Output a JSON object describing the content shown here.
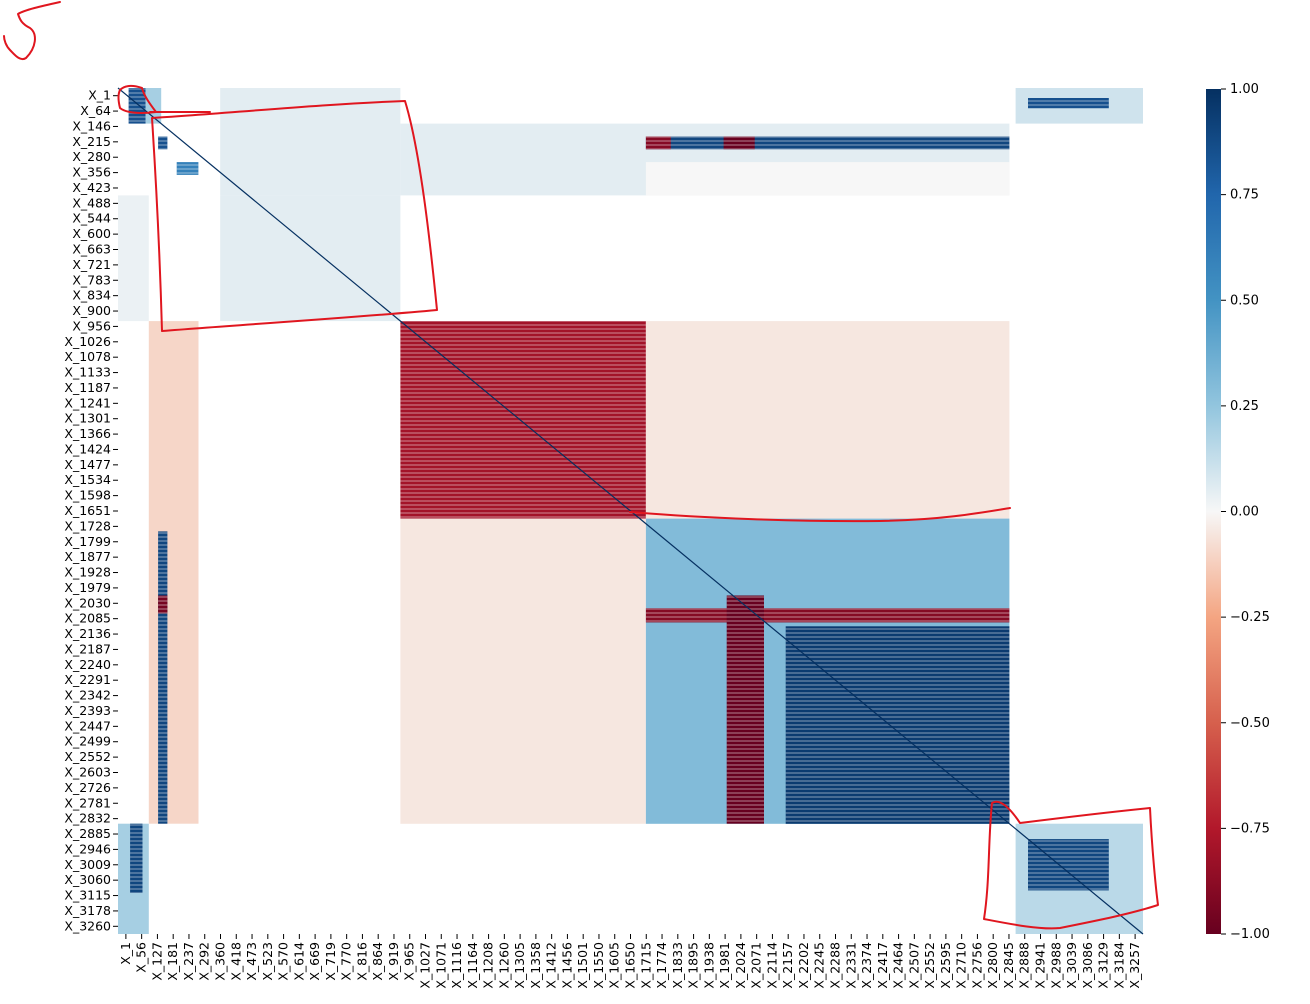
{
  "chart_data": {
    "type": "heatmap",
    "title": "",
    "xlabel": "",
    "ylabel": "",
    "colormap": "RdBu",
    "colorbar": {
      "range": [
        -1.0,
        1.0
      ],
      "ticks": [
        "1.00",
        "0.75",
        "0.50",
        "0.25",
        "0.00",
        "−0.25",
        "−0.50",
        "−0.75",
        "−1.00"
      ],
      "tick_values": [
        1.0,
        0.75,
        0.5,
        0.25,
        0.0,
        -0.25,
        -0.5,
        -0.75,
        -1.0
      ]
    },
    "colors": {
      "strong_positive": "#053061",
      "positive": "#2166ac",
      "weak_positive": "#92c5de",
      "neutral": "#f7f7f7",
      "weak_negative": "#f4a582",
      "negative": "#d6604d",
      "strong_negative": "#67001f",
      "annotation": "#e0161f"
    },
    "variable_index_range": [
      1,
      3300
    ],
    "y_tick_labels": [
      "X_1",
      "X_64",
      "X_146",
      "X_215",
      "X_280",
      "X_356",
      "X_423",
      "X_488",
      "X_544",
      "X_600",
      "X_663",
      "X_721",
      "X_783",
      "X_834",
      "X_900",
      "X_956",
      "X_1026",
      "X_1078",
      "X_1133",
      "X_1187",
      "X_1241",
      "X_1301",
      "X_1366",
      "X_1424",
      "X_1477",
      "X_1534",
      "X_1598",
      "X_1651",
      "X_1728",
      "X_1799",
      "X_1877",
      "X_1928",
      "X_1979",
      "X_2030",
      "X_2085",
      "X_2136",
      "X_2187",
      "X_2240",
      "X_2291",
      "X_2342",
      "X_2393",
      "X_2447",
      "X_2499",
      "X_2552",
      "X_2603",
      "X_2726",
      "X_2781",
      "X_2832",
      "X_2885",
      "X_2946",
      "X_3009",
      "X_3060",
      "X_3115",
      "X_3178",
      "X_3260"
    ],
    "x_tick_labels": [
      "X_1",
      "X_56",
      "X_127",
      "X_181",
      "X_237",
      "X_292",
      "X_360",
      "X_418",
      "X_473",
      "X_523",
      "X_570",
      "X_614",
      "X_669",
      "X_719",
      "X_770",
      "X_816",
      "X_864",
      "X_919",
      "X_965",
      "X_1027",
      "X_1071",
      "X_1116",
      "X_1164",
      "X_1208",
      "X_1260",
      "X_1305",
      "X_1358",
      "X_1412",
      "X_1456",
      "X_1501",
      "X_1550",
      "X_1605",
      "X_1650",
      "X_1715",
      "X_1774",
      "X_1833",
      "X_1895",
      "X_1938",
      "X_1981",
      "X_2024",
      "X_2071",
      "X_2114",
      "X_2157",
      "X_2202",
      "X_2245",
      "X_2288",
      "X_2331",
      "X_2374",
      "X_2417",
      "X_2464",
      "X_2507",
      "X_2552",
      "X_2595",
      "X_2710",
      "X_2756",
      "X_2800",
      "X_2845",
      "X_2888",
      "X_2941",
      "X_2988",
      "X_3039",
      "X_3086",
      "X_3129",
      "X_3184",
      "X_3257"
    ],
    "blocks": [
      {
        "rows": [
          1,
          140
        ],
        "cols": [
          35,
          90
        ],
        "value": 0.85
      },
      {
        "rows": [
          1,
          140
        ],
        "cols": [
          90,
          140
        ],
        "value": 0.2
      },
      {
        "rows": [
          1,
          420
        ],
        "cols": [
          330,
          910
        ],
        "value": 0.05
      },
      {
        "rows": [
          1,
          140
        ],
        "cols": [
          2890,
          3300
        ],
        "value": 0.1
      },
      {
        "rows": [
          40,
          80
        ],
        "cols": [
          2930,
          3190
        ],
        "value": 0.85
      },
      {
        "rows": [
          140,
          420
        ],
        "cols": [
          910,
          2870
        ],
        "value": 0.05
      },
      {
        "rows": [
          190,
          240
        ],
        "cols": [
          1700,
          2870
        ],
        "value": 0.9
      },
      {
        "rows": [
          190,
          240
        ],
        "cols": [
          1700,
          1780
        ],
        "value": -0.9
      },
      {
        "rows": [
          190,
          240
        ],
        "cols": [
          1950,
          2050
        ],
        "value": -1.0
      },
      {
        "rows": [
          190,
          240
        ],
        "cols": [
          130,
          160
        ],
        "value": 0.85
      },
      {
        "rows": [
          290,
          340
        ],
        "cols": [
          190,
          260
        ],
        "value": 0.6
      },
      {
        "rows": [
          290,
          420
        ],
        "cols": [
          1700,
          2870
        ],
        "value": 0.0
      },
      {
        "rows": [
          420,
          910
        ],
        "cols": [
          330,
          910
        ],
        "value": 0.05
      },
      {
        "rows": [
          420,
          910
        ],
        "cols": [
          1,
          100
        ],
        "value": 0.03
      },
      {
        "rows": [
          910,
          2870
        ],
        "cols": [
          100,
          260
        ],
        "value": -0.1
      },
      {
        "rows": [
          910,
          1680
        ],
        "cols": [
          910,
          1700
        ],
        "value": -0.8
      },
      {
        "rows": [
          910,
          1680
        ],
        "cols": [
          1700,
          2870
        ],
        "value": -0.05
      },
      {
        "rows": [
          1680,
          2870
        ],
        "cols": [
          910,
          1700
        ],
        "value": -0.05
      },
      {
        "rows": [
          1680,
          2870
        ],
        "cols": [
          1700,
          2870
        ],
        "value": 0.3
      },
      {
        "rows": [
          2030,
          2085
        ],
        "cols": [
          1700,
          2870
        ],
        "value": -0.9
      },
      {
        "rows": [
          2100,
          2870
        ],
        "cols": [
          2150,
          2870
        ],
        "value": 0.95
      },
      {
        "rows": [
          1980,
          2870
        ],
        "cols": [
          1960,
          2080
        ],
        "value": -1.0
      },
      {
        "rows": [
          1730,
          2870
        ],
        "cols": [
          130,
          160
        ],
        "value": 0.9
      },
      {
        "rows": [
          1980,
          2050
        ],
        "cols": [
          130,
          160
        ],
        "value": -0.95
      },
      {
        "rows": [
          2870,
          3300
        ],
        "cols": [
          1,
          100
        ],
        "value": 0.2
      },
      {
        "rows": [
          2870,
          3140
        ],
        "cols": [
          40,
          80
        ],
        "value": 0.9
      },
      {
        "rows": [
          2870,
          3300
        ],
        "cols": [
          2890,
          3300
        ],
        "value": 0.15
      },
      {
        "rows": [
          2930,
          3130
        ],
        "cols": [
          2930,
          3190
        ],
        "value": 0.9
      }
    ],
    "annotations": [
      {
        "shape": "freehand-outline",
        "region_rows": [
          1,
          70
        ],
        "region_cols": [
          1,
          100
        ]
      },
      {
        "shape": "freehand-outline",
        "region_rows": [
          60,
          1020
        ],
        "region_cols": [
          130,
          1000
        ]
      },
      {
        "shape": "freehand-underline",
        "region_rows": [
          1680,
          1690
        ],
        "region_cols": [
          1700,
          2870
        ]
      },
      {
        "shape": "freehand-outline",
        "region_rows": [
          2800,
          3300
        ],
        "region_cols": [
          2700,
          3300
        ]
      },
      {
        "shape": "handwritten-digit",
        "text": "5"
      }
    ]
  }
}
